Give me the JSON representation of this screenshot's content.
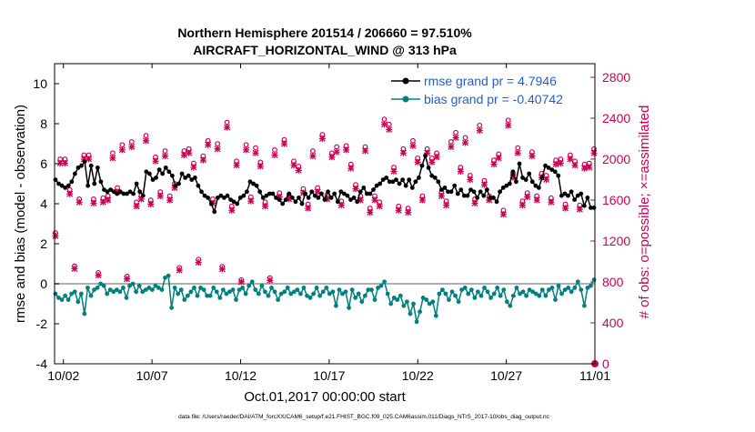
{
  "chart_data": {
    "type": "line",
    "title_line1": "Northern Hemisphere 201514 / 206660 = 97.510%",
    "title_line2": "AIRCRAFT_HORIZONTAL_WIND @ 313 hPa",
    "xlabel": "Oct.01,2017 00:00:00 start",
    "ylabel_left": "rmse and bias (model - observation)",
    "ylabel_right": "# of obs: o=possible; ×=assimilated",
    "footnote": "data file: /Users/raeder/DAI/ATM_forcXX/CAM6_setup/f.e21.FHIST_BGC.f09_025.CAM6assim.011/Diags_NTrS_2017-10/obs_diag_output.nc",
    "x_ticks": [
      "10/02",
      "10/07",
      "10/12",
      "10/17",
      "10/22",
      "10/27",
      "11/01"
    ],
    "x_tick_values": [
      2,
      7,
      12,
      17,
      22,
      27,
      32
    ],
    "xlim": [
      1.5,
      32.0
    ],
    "ylim_left": [
      -4,
      11
    ],
    "y_ticks_left": [
      "-4",
      "-2",
      "0",
      "2",
      "4",
      "6",
      "8",
      "10"
    ],
    "ylim_right": [
      0,
      2933
    ],
    "y_ticks_right": [
      "0",
      "400",
      "800",
      "1200",
      "1600",
      "2000",
      "2400",
      "2800"
    ],
    "legend": {
      "position": "top-right",
      "rmse_label": "rmse grand pr = 4.7946",
      "bias_label": "bias grand pr = -0.40742"
    },
    "colors": {
      "rmse": "#000000",
      "bias": "#008080",
      "obs": "#cc0055",
      "legend_text": "#1f5fd6",
      "zero_line": "#b0b0b0"
    },
    "series": [
      {
        "name": "rmse",
        "values": [
          5.2,
          5.0,
          4.9,
          4.8,
          4.9,
          5.1,
          5.5,
          5.8,
          5.9,
          6.1,
          4.9,
          5.9,
          5.0,
          5.8,
          5.1,
          4.7,
          4.6,
          4.7,
          4.6,
          4.5,
          4.6,
          4.5,
          4.5,
          4.6,
          4.5,
          5.0,
          4.6,
          4.4,
          5.6,
          5.5,
          5.2,
          5.3,
          5.7,
          5.5,
          5.8,
          5.6,
          5.4,
          4.9,
          5.0,
          5.5,
          5.3,
          5.4,
          5.2,
          5.3,
          4.9,
          4.6,
          4.4,
          4.3,
          4.0,
          3.6,
          4.3,
          4.4,
          4.3,
          4.4,
          4.2,
          4.1,
          4.0,
          4.3,
          4.4,
          4.6,
          5.1,
          5.0,
          4.9,
          4.6,
          4.3,
          4.4,
          4.5,
          4.5,
          4.3,
          4.2,
          4.0,
          4.2,
          4.5,
          4.3,
          4.1,
          4.3,
          4.0,
          4.5,
          4.3,
          4.6,
          4.4,
          4.3,
          4.5,
          4.2,
          4.6,
          4.3,
          4.5,
          4.1,
          4.6,
          4.5,
          4.4,
          4.2,
          4.3,
          4.1,
          4.6,
          4.8,
          4.5,
          4.5,
          4.7,
          4.9,
          5.0,
          5.2,
          5.3,
          5.1,
          5.1,
          5.2,
          5.0,
          5.2,
          4.9,
          5.2,
          4.8,
          5.1,
          5.3,
          5.9,
          6.4,
          5.8,
          5.4,
          5.3,
          5.1,
          4.7,
          4.8,
          4.6,
          4.6,
          4.9,
          4.5,
          4.7,
          4.4,
          4.4,
          4.7,
          4.6,
          4.3,
          4.6,
          4.4,
          4.7,
          4.3,
          4.3,
          4.1,
          4.6,
          4.8,
          4.9,
          5.0,
          5.6,
          5.1,
          6.0,
          5.3,
          5.2,
          5.5,
          5.1,
          4.9,
          4.8,
          5.3,
          5.9,
          5.8,
          5.7,
          5.6,
          5.4,
          4.4,
          4.5,
          4.4,
          4.6,
          4.2,
          4.4,
          4.5,
          3.9,
          4.3,
          3.8,
          3.8
        ]
      },
      {
        "name": "bias",
        "values": [
          -0.5,
          -0.7,
          -0.8,
          -0.6,
          -0.8,
          -0.5,
          -0.4,
          -0.9,
          -0.5,
          -1.5,
          -0.2,
          -0.6,
          -0.3,
          -0.2,
          0.0,
          -0.1,
          -0.5,
          -0.3,
          -0.4,
          -0.3,
          -0.4,
          -0.2,
          -0.7,
          -0.1,
          0.0,
          -0.4,
          -0.1,
          -0.4,
          -0.3,
          -0.2,
          -0.3,
          -0.1,
          -0.2,
          -0.3,
          0.3,
          0.4,
          -1.2,
          -0.2,
          -0.5,
          -0.3,
          -0.8,
          -0.6,
          -0.4,
          -0.2,
          -0.6,
          -0.2,
          -0.3,
          -0.6,
          -0.6,
          -0.2,
          -0.4,
          -0.7,
          -0.3,
          -0.5,
          -0.4,
          -0.3,
          -0.8,
          -0.3,
          -0.2,
          -0.5,
          -0.1,
          0.1,
          -0.3,
          -0.5,
          -0.1,
          -0.4,
          -0.6,
          -0.2,
          -0.4,
          -0.8,
          -0.5,
          -0.4,
          -0.2,
          -0.5,
          -0.4,
          -0.3,
          -0.5,
          -0.2,
          -0.6,
          -0.7,
          -0.5,
          -0.2,
          -0.6,
          -0.4,
          -0.2,
          -0.5,
          -0.4,
          -1.1,
          -0.3,
          -0.5,
          -0.4,
          -1.2,
          -0.3,
          -0.7,
          -0.5,
          -0.9,
          -0.6,
          -0.3,
          -0.3,
          -0.8,
          -0.2,
          -0.1,
          0.1,
          -0.5,
          -1.0,
          -0.7,
          -0.8,
          -0.6,
          -1.1,
          -0.9,
          -1.5,
          -1.0,
          -1.9,
          -1.4,
          -0.7,
          -0.8,
          -1.0,
          -0.9,
          -1.6,
          -0.5,
          -0.3,
          -0.5,
          -0.8,
          -0.4,
          -0.6,
          -0.9,
          -0.3,
          -0.2,
          -0.5,
          -0.3,
          -0.7,
          -0.4,
          -0.6,
          -0.2,
          -0.4,
          -0.7,
          -0.5,
          -0.2,
          -0.6,
          -0.3,
          -0.9,
          -1.1,
          -0.6,
          -0.2,
          -0.5,
          -0.4,
          -0.6,
          -0.3,
          -0.4,
          -0.5,
          -0.6,
          -0.3,
          -0.6,
          -0.3,
          -0.2,
          -0.8,
          -0.1,
          -0.5,
          -0.3,
          -0.2,
          -0.4,
          -0.2,
          0.1,
          -0.3,
          -1.1,
          -0.2,
          -0.1,
          0.2
        ]
      },
      {
        "name": "obs_possible",
        "values": [
          1280,
          2000,
          2000,
          1700,
          955,
          1610,
          2040,
          2040,
          1610,
          890,
          1620,
          1640,
          2060,
          1720,
          2140,
          855,
          2170,
          1580,
          1650,
          2230,
          1600,
          2020,
          1680,
          2080,
          1640,
          1760,
          940,
          2080,
          2100,
          1960,
          1020,
          2030,
          2180,
          1610,
          2150,
          950,
          2360,
          1540,
          1980,
          820,
          2140,
          1630,
          2110,
          1970,
          1580,
          840,
          2090,
          1670,
          2190,
          1650,
          1980,
          1930,
          1710,
          1560,
          2080,
          1720,
          2240,
          1650,
          2060,
          2120,
          1590,
          2130,
          1950,
          1750,
          1640,
          2120,
          1520,
          1640,
          1580,
          2390,
          2340,
          1920,
          1540,
          2100,
          1520,
          2180,
          2010,
          1640,
          2100,
          2010,
          2060,
          1680,
          1590,
          2170,
          2260,
          1920,
          2210,
          1840,
          1610,
          2330,
          1790,
          1640,
          1990,
          2050,
          1500,
          2380,
          1860,
          2110,
          1590,
          1670,
          2070,
          1640,
          1860,
          1840,
          1620,
          1990,
          2000,
          1560,
          2040,
          1980,
          1550,
          1950,
          1960,
          2100
        ]
      },
      {
        "name": "obs_assimilated",
        "values": [
          1250,
          1960,
          1960,
          1660,
          930,
          1580,
          2000,
          2000,
          1570,
          865,
          1580,
          1600,
          2010,
          1680,
          2090,
          830,
          2120,
          1540,
          1610,
          2180,
          1560,
          1980,
          1640,
          2030,
          1600,
          1720,
          915,
          2040,
          2060,
          1920,
          990,
          1990,
          2140,
          1570,
          2100,
          925,
          2310,
          1500,
          1940,
          800,
          2090,
          1590,
          2060,
          1930,
          1540,
          815,
          2040,
          1630,
          2150,
          1610,
          1940,
          1890,
          1670,
          1520,
          2030,
          1680,
          2200,
          1610,
          2020,
          2070,
          1550,
          2090,
          1910,
          1710,
          1600,
          2080,
          1480,
          1600,
          1540,
          2340,
          2290,
          1880,
          1500,
          2060,
          1480,
          2130,
          1970,
          1600,
          2060,
          1970,
          2020,
          1640,
          1550,
          2120,
          2210,
          1880,
          2160,
          1800,
          1570,
          2280,
          1750,
          1600,
          1950,
          2010,
          1460,
          2330,
          1820,
          2060,
          1550,
          1630,
          2030,
          1600,
          1820,
          1800,
          1580,
          1950,
          1960,
          1520,
          2000,
          1940,
          1510,
          1910,
          1920,
          2060
        ]
      }
    ]
  }
}
